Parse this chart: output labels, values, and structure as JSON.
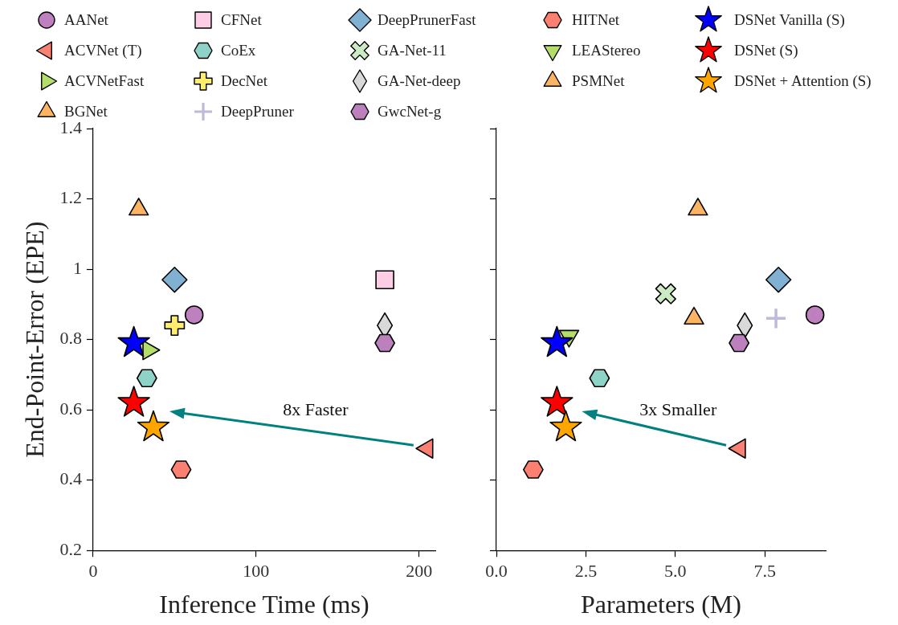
{
  "chart_data": [
    {
      "type": "scatter",
      "xlabel": "Inference Time (ms)",
      "ylabel": "End-Point-Error (EPE)",
      "xlim": [
        0,
        210
      ],
      "xticks": [
        0,
        100,
        200
      ],
      "ylim": [
        0.2,
        1.4
      ],
      "yticks": [
        0.2,
        0.4,
        0.6,
        0.8,
        1.0,
        1.2,
        1.4
      ],
      "legend": "top",
      "annotations": [
        "8x Faster"
      ],
      "series": [
        {
          "name": "AANet",
          "color": "#bf80bf",
          "marker": "circle",
          "x": [
            62
          ],
          "values": [
            0.87
          ]
        },
        {
          "name": "ACVNet (T)",
          "color": "#fa8072",
          "marker": "triangle-left",
          "x": [
            205
          ],
          "values": [
            0.49
          ]
        },
        {
          "name": "ACVNetFast",
          "color": "#b3de69",
          "marker": "triangle-right",
          "x": [
            34
          ],
          "values": [
            0.77
          ]
        },
        {
          "name": "BGNet",
          "color": "#fdb462",
          "marker": "triangle",
          "x": [
            28
          ],
          "values": [
            1.17
          ]
        },
        {
          "name": "CFNet",
          "color": "#fccde5",
          "marker": "square",
          "x": [
            179
          ],
          "values": [
            0.97
          ]
        },
        {
          "name": "CoEx",
          "color": "#8dd3c7",
          "x": [
            33
          ],
          "values": [
            0.69
          ]
        },
        {
          "name": "DecNet",
          "color": "#ffed6f",
          "marker": "plus",
          "x": [
            50
          ],
          "values": [
            0.84
          ]
        },
        {
          "name": "DeepPruner",
          "color": "#bebada",
          "marker": "cross"
        },
        {
          "name": "DeepPrunerFast",
          "color": "#80b1d3",
          "marker": "diamond",
          "x": [
            50
          ],
          "values": [
            0.97
          ]
        },
        {
          "name": "GA-Net-11",
          "color": "#ccebc5",
          "marker": "x"
        },
        {
          "name": "GA-Net-deep",
          "color": "#d9d9d9",
          "marker": "diamond-thin",
          "x": [
            179
          ],
          "values": [
            0.84
          ]
        },
        {
          "name": "GwcNet-g",
          "color": "#bc80bd",
          "x": [
            179
          ],
          "values": [
            0.79
          ]
        },
        {
          "name": "HITNet",
          "color": "#fb8072",
          "x": [
            54
          ],
          "values": [
            0.43
          ]
        },
        {
          "name": "LEAStereo",
          "color": "#b3de69",
          "marker": "triangle-down"
        },
        {
          "name": "PSMNet",
          "color": "#fdb462",
          "marker": "triangle"
        },
        {
          "name": "DSNet Vanilla (S)",
          "color": "#0000ff",
          "marker": "star",
          "x": [
            25
          ],
          "values": [
            0.79
          ]
        },
        {
          "name": "DSNet (S)",
          "color": "#ff0000",
          "marker": "star",
          "x": [
            25
          ],
          "values": [
            0.62
          ]
        },
        {
          "name": "DSNet + Attention (S)",
          "color": "#ffa500",
          "marker": "star",
          "x": [
            37
          ],
          "values": [
            0.55
          ]
        }
      ]
    },
    {
      "type": "scatter",
      "xlabel": "Parameters (M)",
      "xlim": [
        0,
        9.2
      ],
      "xticks": [
        {
          "value": 0,
          "label": "0.0"
        },
        {
          "value": 2.5,
          "label": "2.5"
        },
        {
          "value": 5,
          "label": "5.0"
        },
        {
          "value": 7.5,
          "label": "7.5"
        }
      ],
      "ylim": [
        0.2,
        1.4
      ],
      "yticks": [
        0.2,
        0.4,
        0.6,
        0.8,
        1.0,
        1.2,
        1.4
      ],
      "tick_labels": "x",
      "annotations": [
        "3x Smaller"
      ],
      "series": [
        {
          "color": "#bf80bf",
          "marker": "circle",
          "x": [
            8.9
          ],
          "values": [
            0.87
          ]
        },
        {
          "color": "#fa8072",
          "marker": "triangle-left",
          "x": [
            6.8
          ],
          "values": [
            0.49
          ]
        },
        {
          "color": "#fdb462",
          "marker": "triangle",
          "x": [
            5.63
          ],
          "values": [
            1.17
          ]
        },
        {
          "color": "#8dd3c7",
          "x": [
            2.88
          ],
          "values": [
            0.69
          ]
        },
        {
          "color": "#bebada",
          "marker": "cross",
          "x": [
            7.81
          ],
          "values": [
            0.86
          ]
        },
        {
          "color": "#80b1d3",
          "marker": "diamond",
          "x": [
            7.88
          ],
          "values": [
            0.97
          ]
        },
        {
          "color": "#ccebc5",
          "marker": "x",
          "x": [
            4.73
          ],
          "values": [
            0.93
          ]
        },
        {
          "color": "#d9d9d9",
          "marker": "diamond-thin",
          "x": [
            6.94
          ],
          "values": [
            0.84
          ]
        },
        {
          "color": "#bc80bd",
          "x": [
            6.78
          ],
          "values": [
            0.79
          ]
        },
        {
          "color": "#fb8072",
          "x": [
            1.03
          ],
          "values": [
            0.43
          ]
        },
        {
          "color": "#b3de69",
          "marker": "triangle-down",
          "x": [
            2.03
          ],
          "values": [
            0.81
          ]
        },
        {
          "color": "#fdb462",
          "marker": "triangle",
          "x": [
            5.52
          ],
          "values": [
            0.86
          ]
        },
        {
          "color": "#0000ff",
          "marker": "star",
          "x": [
            1.69
          ],
          "values": [
            0.79
          ]
        },
        {
          "color": "#ff0000",
          "marker": "star",
          "x": [
            1.69
          ],
          "values": [
            0.62
          ]
        },
        {
          "color": "#ffa500",
          "marker": "star",
          "x": [
            1.94
          ],
          "values": [
            0.55
          ]
        }
      ]
    }
  ]
}
